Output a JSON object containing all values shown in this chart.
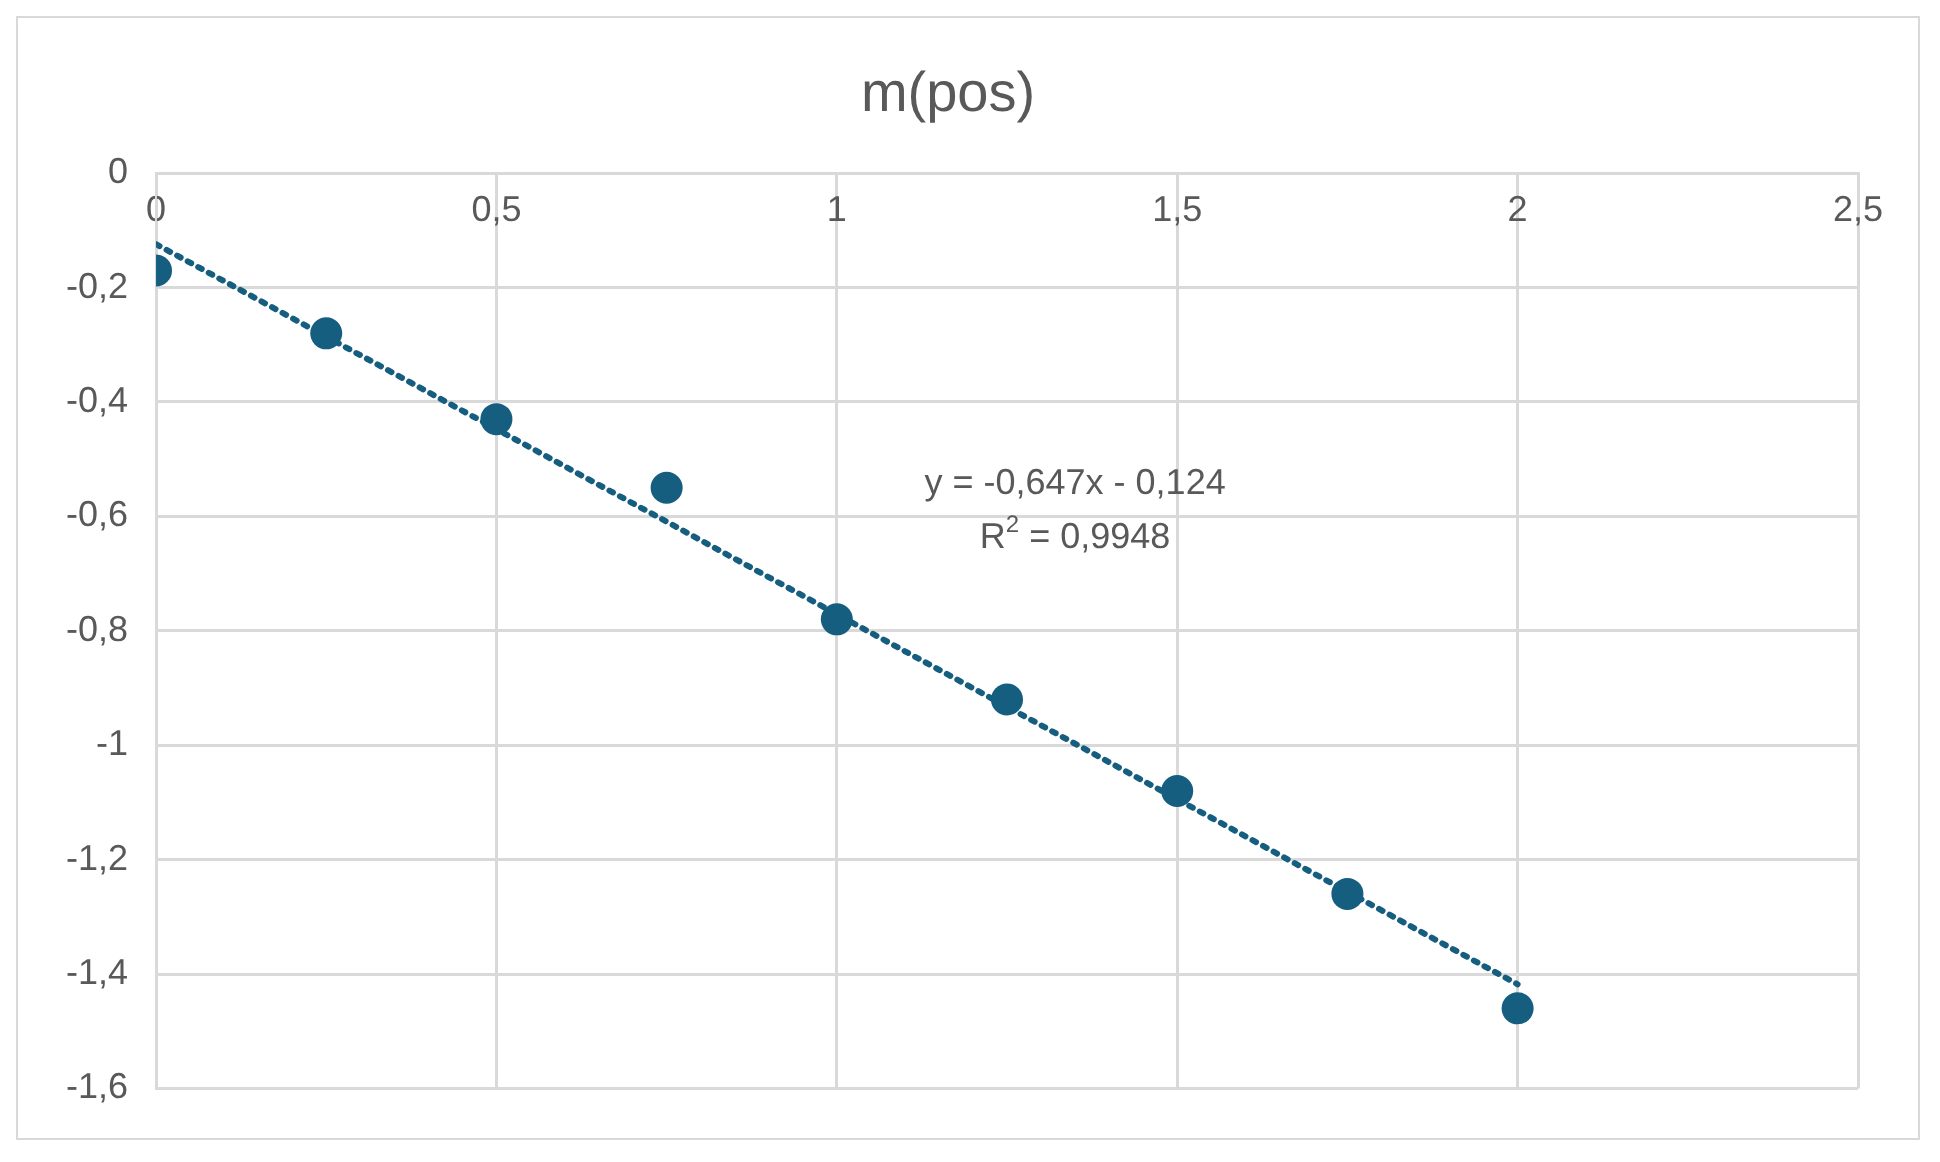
{
  "chart_data": {
    "type": "scatter",
    "title": "m(pos)",
    "x": [
      0,
      0.25,
      0.5,
      0.75,
      1,
      1.25,
      1.5,
      1.75,
      2
    ],
    "series": [
      {
        "type": "scatter",
        "color": "#155e80",
        "marker": "circle",
        "values": [
          -0.17,
          -0.28,
          -0.43,
          -0.55,
          -0.78,
          -0.92,
          -1.08,
          -1.26,
          -1.46
        ]
      },
      {
        "type": "line",
        "color": "#155e80",
        "marker": "none",
        "line_style": "dotted",
        "x": [
          0,
          2
        ],
        "values": [
          -0.124,
          -1.418
        ]
      }
    ],
    "xlim": [
      0,
      2.5
    ],
    "xticks": [
      {
        "value": 0,
        "label": "0"
      },
      {
        "value": 0.5,
        "label": "0,5"
      },
      {
        "value": 1,
        "label": "1"
      },
      {
        "value": 1.5,
        "label": "1,5"
      },
      {
        "value": 2,
        "label": "2"
      },
      {
        "value": 2.5,
        "label": "2,5"
      }
    ],
    "ylim": [
      -1.6,
      0
    ],
    "yticks": [
      {
        "value": -1.6,
        "label": "-1,6"
      },
      {
        "value": -1.4,
        "label": "-1,4"
      },
      {
        "value": -1.2,
        "label": "-1,2"
      },
      {
        "value": -1,
        "label": "-1"
      },
      {
        "value": -0.8,
        "label": "-0,8"
      },
      {
        "value": -0.6,
        "label": "-0,6"
      },
      {
        "value": -0.4,
        "label": "-0,4"
      },
      {
        "value": -0.2,
        "label": "-0,2"
      },
      {
        "value": 0,
        "label": "0"
      }
    ],
    "grid": true,
    "legend": false,
    "annotations": [
      "y = -0,647x - 0,124",
      "R$^{2}$ = 0,9948"
    ]
  }
}
